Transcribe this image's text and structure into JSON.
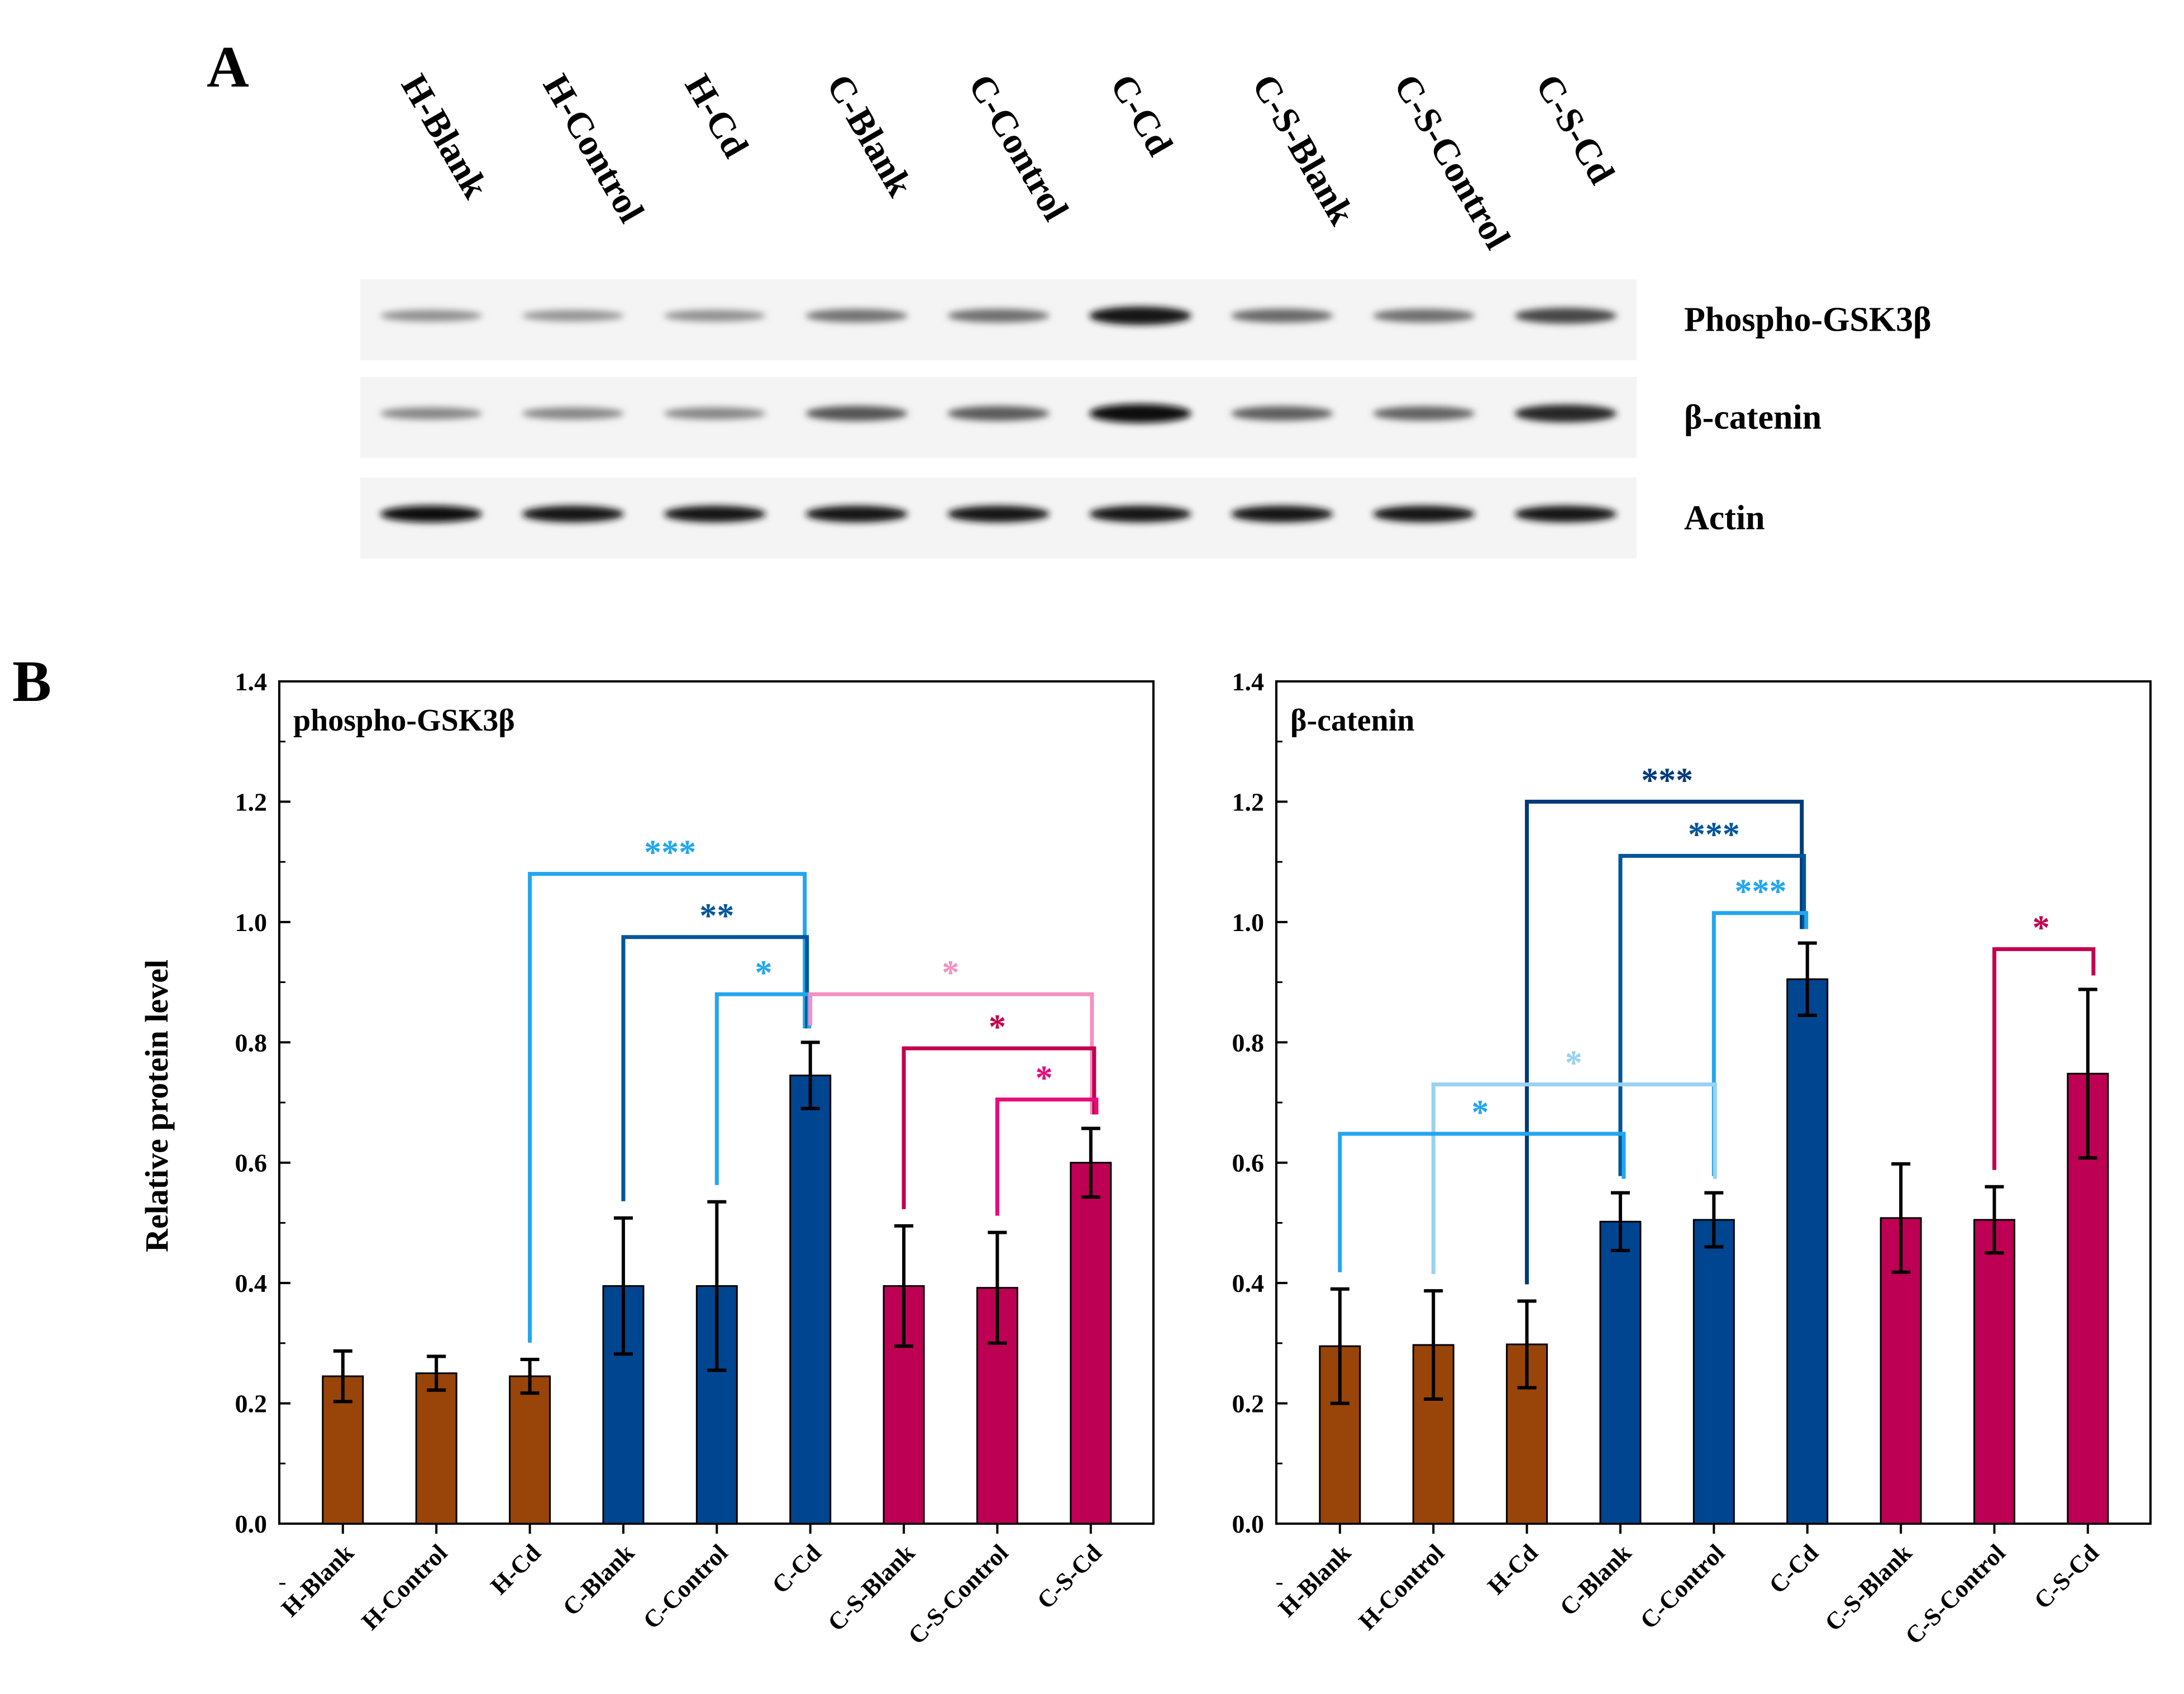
{
  "panel_labels": {
    "a": "A",
    "b": "B"
  },
  "blot": {
    "lanes": [
      "H-Blank",
      "H-Control",
      "H-Cd",
      "C-Blank",
      "C-Control",
      "C-Cd",
      "C-S-Blank",
      "C-S-Control",
      "C-S-Cd"
    ],
    "rows": [
      {
        "label": "Phospho-GSK3β",
        "intensity": [
          0.35,
          0.33,
          0.35,
          0.5,
          0.52,
          0.95,
          0.55,
          0.52,
          0.72
        ]
      },
      {
        "label": "β-catenin",
        "intensity": [
          0.4,
          0.4,
          0.4,
          0.65,
          0.62,
          1.0,
          0.6,
          0.58,
          0.88
        ]
      },
      {
        "label": "Actin",
        "intensity": [
          1.0,
          0.98,
          0.96,
          0.98,
          0.98,
          0.98,
          0.97,
          0.97,
          0.96
        ]
      }
    ]
  },
  "colors": {
    "brown": "#994409",
    "blue": "#004590",
    "crimson": "#bd0053",
    "sig_cyan": "#22a6ee",
    "sig_navy": "#003a78",
    "sig_blue": "#00559b",
    "sig_lightblue": "#99d1f2",
    "sig_pink": "#f590c2",
    "sig_crimson": "#c2004e",
    "sig_magenta": "#eb0a7a"
  },
  "chart_data": [
    {
      "type": "bar",
      "title": "phospho-GSK3β",
      "xlabel": "",
      "ylabel": "Relative protein level",
      "ylim": [
        0,
        1.4
      ],
      "yticks": [
        "0.0",
        "0.2",
        "0.4",
        "0.6",
        "0.8",
        "1.0",
        "1.2",
        "1.4"
      ],
      "categories": [
        "H-Blank",
        "H-Control",
        "H-Cd",
        "C-Blank",
        "C-Control",
        "C-Cd",
        "C-S-Blank",
        "C-S-Control",
        "C-S-Cd"
      ],
      "values": [
        0.245,
        0.25,
        0.245,
        0.395,
        0.395,
        0.745,
        0.395,
        0.392,
        0.6
      ],
      "errors": [
        0.042,
        0.028,
        0.028,
        0.113,
        0.14,
        0.055,
        0.1,
        0.092,
        0.057
      ],
      "bar_colors": [
        "brown",
        "brown",
        "brown",
        "blue",
        "blue",
        "blue",
        "crimson",
        "crimson",
        "crimson"
      ],
      "significance": [
        {
          "from": 2,
          "to": 5,
          "label": "***",
          "color": "sig_cyan",
          "bar_y": 1.08
        },
        {
          "from": 3,
          "to": 5,
          "label": "**",
          "color": "sig_blue",
          "bar_y": 0.975
        },
        {
          "from": 4,
          "to": 5,
          "label": "*",
          "color": "sig_cyan",
          "bar_y": 0.88
        },
        {
          "from": 5,
          "to": 8,
          "label": "*",
          "color": "sig_pink",
          "bar_y": 0.88
        },
        {
          "from": 6,
          "to": 8,
          "label": "*",
          "color": "sig_crimson",
          "bar_y": 0.79
        },
        {
          "from": 7,
          "to": 8,
          "label": "*",
          "color": "sig_magenta",
          "bar_y": 0.705
        }
      ]
    },
    {
      "type": "bar",
      "title": "β-catenin",
      "xlabel": "",
      "ylabel": "",
      "ylim": [
        0,
        1.4
      ],
      "yticks": [
        "0.0",
        "0.2",
        "0.4",
        "0.6",
        "0.8",
        "1.0",
        "1.2",
        "1.4"
      ],
      "categories": [
        "H-Blank",
        "H-Control",
        "H-Cd",
        "C-Blank",
        "C-Control",
        "C-Cd",
        "C-S-Blank",
        "C-S-Control",
        "C-S-Cd"
      ],
      "values": [
        0.295,
        0.297,
        0.298,
        0.502,
        0.505,
        0.905,
        0.508,
        0.505,
        0.748
      ],
      "errors": [
        0.095,
        0.09,
        0.072,
        0.048,
        0.045,
        0.06,
        0.09,
        0.055,
        0.14
      ],
      "bar_colors": [
        "brown",
        "brown",
        "brown",
        "blue",
        "blue",
        "blue",
        "crimson",
        "crimson",
        "crimson"
      ],
      "significance": [
        {
          "from": 2,
          "to": 5,
          "label": "***",
          "color": "sig_navy",
          "bar_y": 1.2
        },
        {
          "from": 3,
          "to": 5,
          "label": "***",
          "color": "sig_blue",
          "bar_y": 1.11
        },
        {
          "from": 4,
          "to": 5,
          "label": "***",
          "color": "sig_cyan",
          "bar_y": 1.015
        },
        {
          "from": 1,
          "to": 4,
          "label": "*",
          "color": "sig_lightblue",
          "bar_y": 0.73
        },
        {
          "from": 0,
          "to": 3,
          "label": "*",
          "color": "sig_cyan",
          "bar_y": 0.648
        },
        {
          "from": 7,
          "to": 8,
          "label": "*",
          "color": "sig_crimson",
          "bar_y": 0.955
        }
      ]
    }
  ]
}
